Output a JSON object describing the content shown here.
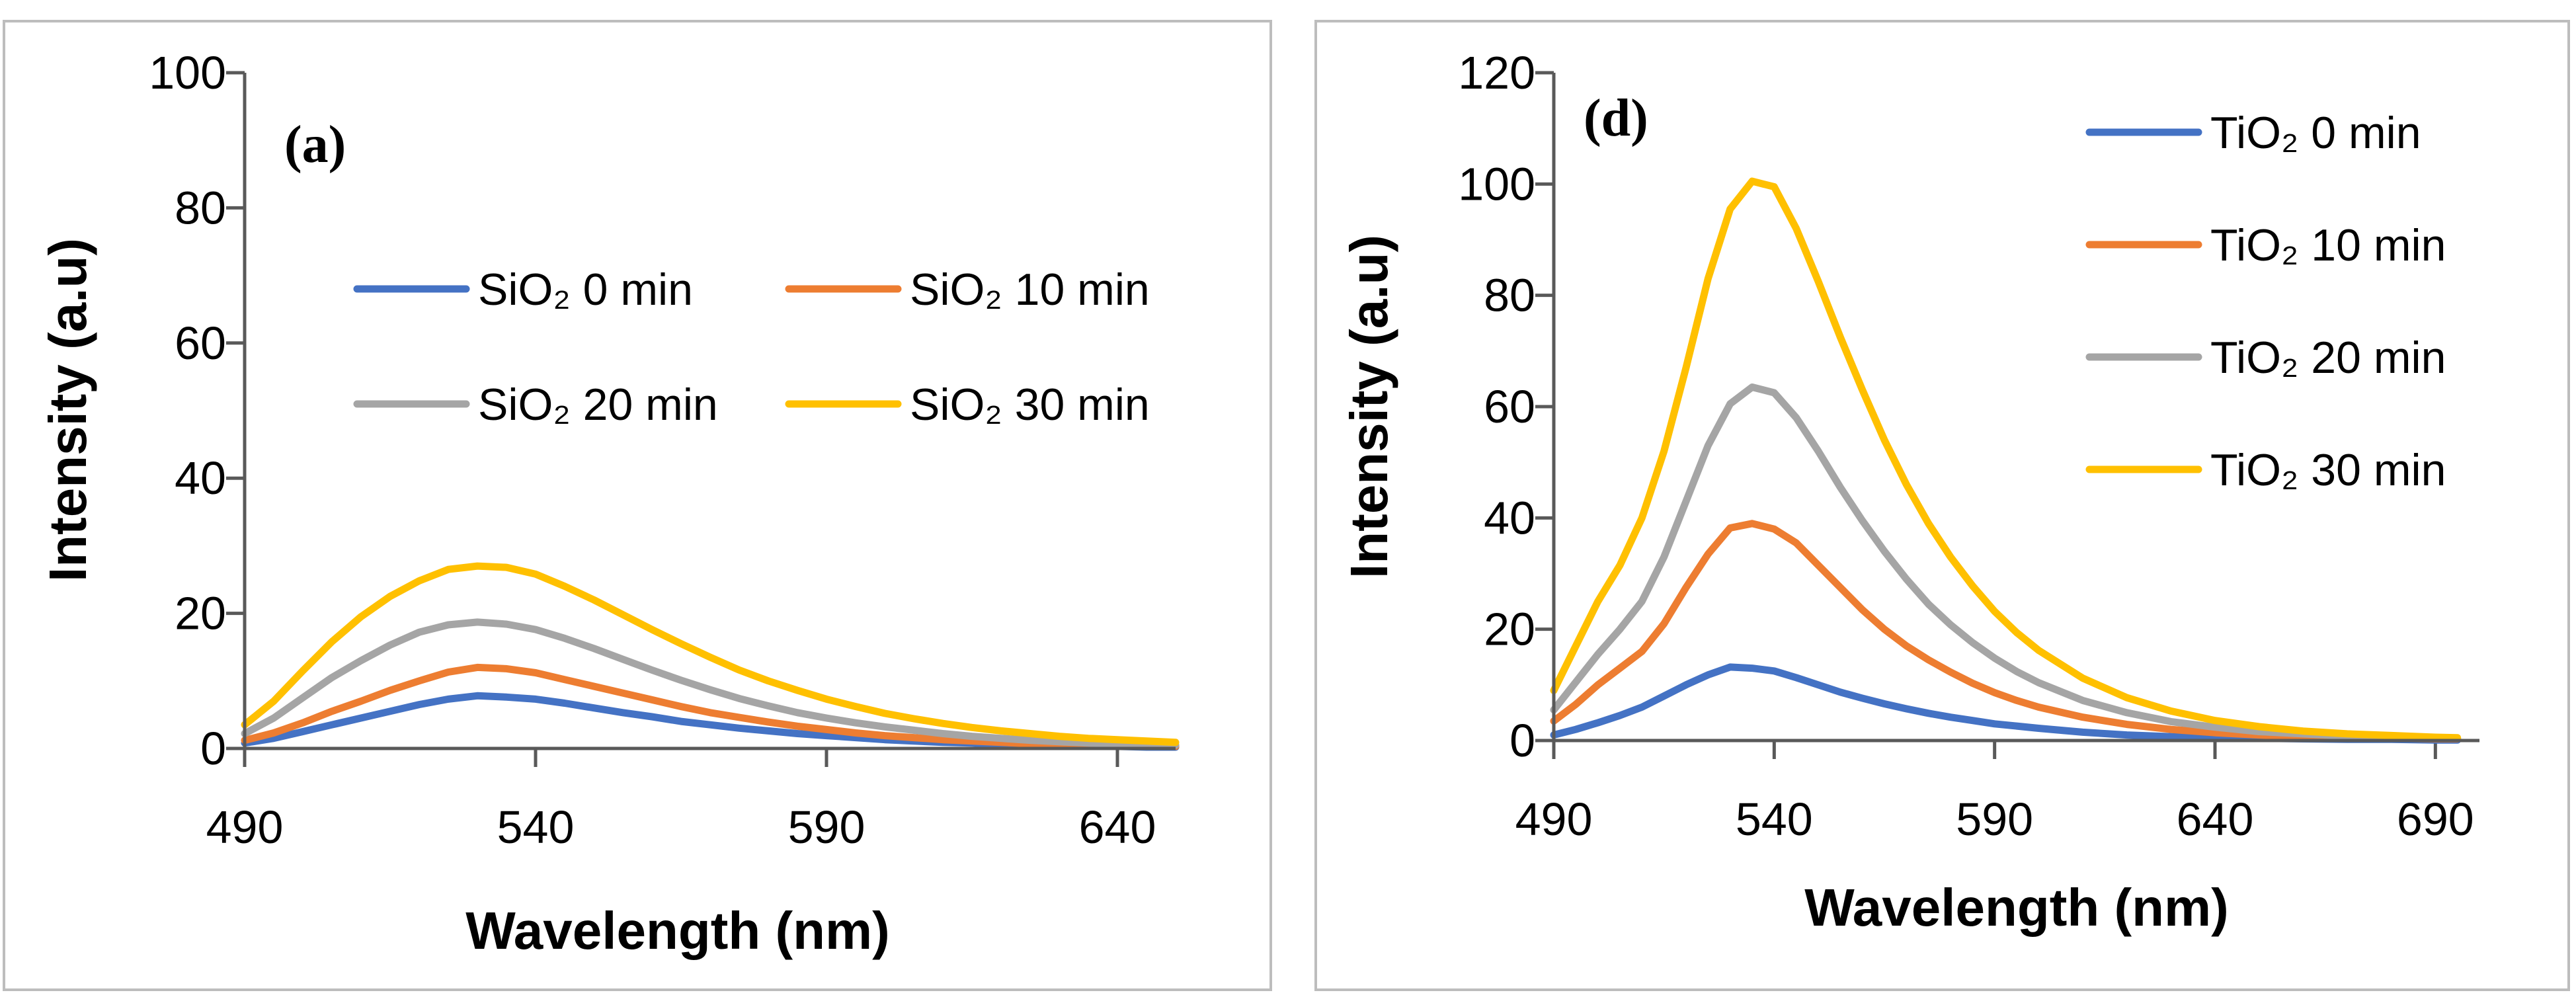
{
  "chart_data": [
    {
      "type": "line",
      "panel_label": "(a)",
      "xlabel": "Wavelength (nm)",
      "ylabel": "Intensity (a.u)",
      "xlim": [
        490,
        650
      ],
      "ylim": [
        0,
        100
      ],
      "xticks": [
        490,
        540,
        590,
        640
      ],
      "yticks": [
        0,
        20,
        40,
        60,
        80,
        100
      ],
      "legend_position": "top-right, 2 columns",
      "series": [
        {
          "name": "SiO₂ 0 min",
          "color": "#4472C4",
          "x": [
            490,
            495,
            500,
            505,
            510,
            515,
            520,
            525,
            530,
            535,
            540,
            545,
            550,
            555,
            560,
            565,
            570,
            575,
            580,
            585,
            590,
            595,
            600,
            605,
            610,
            615,
            620,
            625,
            630,
            635,
            640,
            645,
            650
          ],
          "y": [
            0.8,
            1.5,
            2.5,
            3.5,
            4.5,
            5.5,
            6.5,
            7.3,
            7.8,
            7.6,
            7.3,
            6.7,
            6.0,
            5.3,
            4.7,
            4.0,
            3.5,
            3.0,
            2.6,
            2.2,
            1.9,
            1.6,
            1.3,
            1.1,
            0.9,
            0.8,
            0.6,
            0.5,
            0.4,
            0.3,
            0.3,
            0.2,
            0.2
          ]
        },
        {
          "name": "SiO₂ 10 min",
          "color": "#ED7D31",
          "x": [
            490,
            495,
            500,
            505,
            510,
            515,
            520,
            525,
            530,
            535,
            540,
            545,
            550,
            555,
            560,
            565,
            570,
            575,
            580,
            585,
            590,
            595,
            600,
            605,
            610,
            615,
            620,
            625,
            630,
            635,
            640,
            645,
            650
          ],
          "y": [
            1.2,
            2.3,
            3.8,
            5.5,
            7.0,
            8.6,
            10.0,
            11.3,
            12.0,
            11.8,
            11.2,
            10.2,
            9.2,
            8.2,
            7.2,
            6.2,
            5.3,
            4.6,
            3.9,
            3.3,
            2.8,
            2.3,
            1.9,
            1.6,
            1.3,
            1.1,
            0.9,
            0.7,
            0.6,
            0.5,
            0.4,
            0.3,
            0.3
          ]
        },
        {
          "name": "SiO₂ 20 min",
          "color": "#A5A5A5",
          "x": [
            490,
            495,
            500,
            505,
            510,
            515,
            520,
            525,
            530,
            535,
            540,
            545,
            550,
            555,
            560,
            565,
            570,
            575,
            580,
            585,
            590,
            595,
            600,
            605,
            610,
            615,
            620,
            625,
            630,
            635,
            640,
            645,
            650
          ],
          "y": [
            2.2,
            4.5,
            7.5,
            10.5,
            13.0,
            15.3,
            17.2,
            18.3,
            18.7,
            18.4,
            17.6,
            16.3,
            14.8,
            13.2,
            11.6,
            10.1,
            8.7,
            7.4,
            6.3,
            5.3,
            4.5,
            3.8,
            3.2,
            2.7,
            2.2,
            1.8,
            1.5,
            1.2,
            1.0,
            0.8,
            0.7,
            0.5,
            0.5
          ]
        },
        {
          "name": "SiO₂ 30 min",
          "color": "#FFC000",
          "x": [
            490,
            495,
            500,
            505,
            510,
            515,
            520,
            525,
            530,
            535,
            540,
            545,
            550,
            555,
            560,
            565,
            570,
            575,
            580,
            585,
            590,
            595,
            600,
            605,
            610,
            615,
            620,
            625,
            630,
            635,
            640,
            645,
            650
          ],
          "y": [
            3.5,
            7.0,
            11.5,
            15.8,
            19.5,
            22.5,
            24.8,
            26.5,
            27.0,
            26.8,
            25.8,
            24.0,
            22.0,
            19.8,
            17.6,
            15.5,
            13.5,
            11.6,
            10.0,
            8.6,
            7.3,
            6.2,
            5.2,
            4.4,
            3.7,
            3.1,
            2.6,
            2.2,
            1.8,
            1.5,
            1.3,
            1.1,
            0.9
          ]
        }
      ]
    },
    {
      "type": "line",
      "panel_label": "(d)",
      "xlabel": "Wavelength (nm)",
      "ylabel": "Intensity (a.u)",
      "xlim": [
        490,
        700
      ],
      "ylim": [
        0,
        120
      ],
      "xticks": [
        490,
        540,
        590,
        640,
        690
      ],
      "yticks": [
        0,
        20,
        40,
        60,
        80,
        100,
        120
      ],
      "legend_position": "top-right, 1 column",
      "series": [
        {
          "name": "TiO₂ 0 min",
          "color": "#4472C4",
          "x": [
            490,
            495,
            500,
            505,
            510,
            515,
            520,
            525,
            530,
            535,
            540,
            545,
            550,
            555,
            560,
            565,
            570,
            575,
            580,
            585,
            590,
            595,
            600,
            610,
            620,
            630,
            640,
            650,
            660,
            670,
            680,
            690,
            695
          ],
          "y": [
            1.0,
            2.0,
            3.2,
            4.5,
            6.0,
            8.0,
            10.0,
            11.8,
            13.2,
            13.0,
            12.5,
            11.3,
            10.0,
            8.7,
            7.6,
            6.6,
            5.7,
            4.9,
            4.2,
            3.6,
            3.0,
            2.6,
            2.2,
            1.5,
            1.0,
            0.7,
            0.5,
            0.4,
            0.3,
            0.2,
            0.2,
            0.1,
            0.1
          ]
        },
        {
          "name": "TiO₂ 10 min",
          "color": "#ED7D31",
          "x": [
            490,
            495,
            500,
            505,
            510,
            515,
            520,
            525,
            530,
            535,
            540,
            545,
            550,
            555,
            560,
            565,
            570,
            575,
            580,
            585,
            590,
            595,
            600,
            610,
            620,
            630,
            640,
            650,
            660,
            670,
            680,
            690,
            695
          ],
          "y": [
            3.5,
            6.5,
            10.0,
            13.0,
            16.0,
            21.0,
            27.5,
            33.5,
            38.2,
            39.0,
            38.0,
            35.5,
            31.5,
            27.5,
            23.5,
            20.0,
            17.0,
            14.5,
            12.3,
            10.3,
            8.6,
            7.2,
            6.0,
            4.2,
            2.9,
            2.0,
            1.4,
            1.0,
            0.7,
            0.5,
            0.4,
            0.3,
            0.3
          ]
        },
        {
          "name": "TiO₂ 20 min",
          "color": "#A5A5A5",
          "x": [
            490,
            495,
            500,
            505,
            510,
            515,
            520,
            525,
            530,
            535,
            540,
            545,
            550,
            555,
            560,
            565,
            570,
            575,
            580,
            585,
            590,
            595,
            600,
            610,
            620,
            630,
            640,
            650,
            660,
            670,
            680,
            690,
            695
          ],
          "y": [
            5.5,
            10.5,
            15.5,
            20.0,
            25.0,
            33.0,
            43.0,
            53.0,
            60.5,
            63.5,
            62.5,
            58.0,
            52.0,
            45.5,
            39.5,
            34.0,
            29.0,
            24.5,
            20.8,
            17.6,
            14.8,
            12.4,
            10.4,
            7.2,
            5.0,
            3.4,
            2.4,
            1.6,
            1.2,
            0.8,
            0.6,
            0.5,
            0.4
          ]
        },
        {
          "name": "TiO₂ 30 min",
          "color": "#FFC000",
          "x": [
            490,
            495,
            500,
            505,
            510,
            515,
            520,
            525,
            530,
            535,
            540,
            545,
            550,
            555,
            560,
            565,
            570,
            575,
            580,
            585,
            590,
            595,
            600,
            610,
            620,
            630,
            640,
            650,
            660,
            670,
            680,
            690,
            695
          ],
          "y": [
            9.0,
            17.0,
            25.0,
            31.5,
            40.0,
            52.0,
            67.0,
            83.0,
            95.5,
            100.5,
            99.5,
            92.0,
            82.5,
            72.5,
            63.0,
            54.0,
            46.0,
            39.0,
            33.0,
            27.8,
            23.2,
            19.4,
            16.2,
            11.2,
            7.7,
            5.3,
            3.6,
            2.5,
            1.7,
            1.2,
            0.9,
            0.6,
            0.5
          ]
        }
      ]
    }
  ]
}
